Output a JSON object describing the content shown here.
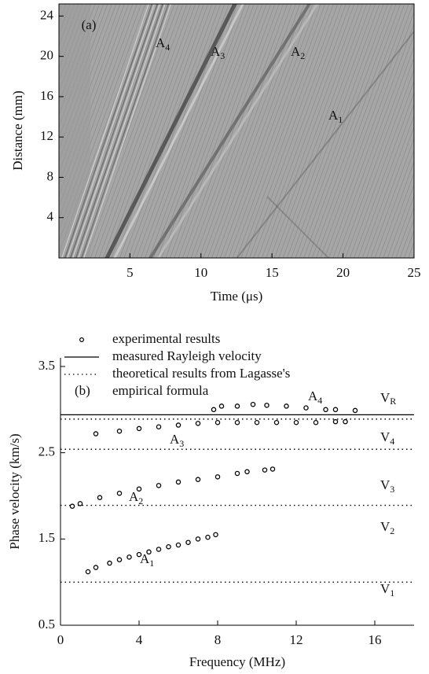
{
  "chart_data": [
    {
      "type": "image",
      "label": "(a)",
      "xlabel": "Time (μs)",
      "ylabel": "Distance (mm)",
      "xlim": [
        0,
        25
      ],
      "ylim": [
        0,
        25.2
      ],
      "xticks": [
        5,
        10,
        15,
        20,
        25
      ],
      "yticks": [
        4,
        8,
        12,
        16,
        20,
        24
      ],
      "annotations": [
        {
          "text": "A",
          "sub": "4"
        },
        {
          "text": "A",
          "sub": "3"
        },
        {
          "text": "A",
          "sub": "2"
        },
        {
          "text": "A",
          "sub": "1"
        }
      ]
    },
    {
      "type": "scatter",
      "label": "(b)",
      "xlabel": "Frequency (MHz)",
      "ylabel": "Phase velocity (km/s)",
      "xlim": [
        0,
        18
      ],
      "ylim": [
        0.5,
        3.6
      ],
      "xticks": [
        0,
        4,
        8,
        12,
        16
      ],
      "yticks": [
        3.5,
        2.5,
        1.5,
        0.5
      ],
      "series": [
        {
          "name": "experimental results",
          "color": "#000000",
          "marker": "open-circle",
          "groups": [
            {
              "annotation": {
                "text": "A",
                "sub": "1"
              },
              "x": [
                1.4,
                1.8,
                2.5,
                3,
                3.5,
                4,
                4.5,
                5,
                5.5,
                6,
                6.5,
                7,
                7.5,
                7.9
              ],
              "y": [
                1.12,
                1.17,
                1.22,
                1.26,
                1.29,
                1.32,
                1.35,
                1.38,
                1.41,
                1.43,
                1.46,
                1.5,
                1.52,
                1.55
              ]
            },
            {
              "annotation": {
                "text": "A",
                "sub": "2"
              },
              "x": [
                0.6,
                1,
                2,
                3,
                4,
                5,
                6,
                7,
                8,
                9,
                9.5,
                10.4,
                10.8
              ],
              "y": [
                1.88,
                1.91,
                1.98,
                2.03,
                2.08,
                2.12,
                2.16,
                2.19,
                2.22,
                2.26,
                2.28,
                2.3,
                2.31
              ]
            },
            {
              "annotation": {
                "text": "A",
                "sub": "3"
              },
              "x": [
                1.8,
                3,
                4,
                5,
                6,
                7,
                8,
                9,
                10,
                11,
                12,
                13,
                14,
                14.5
              ],
              "y": [
                2.72,
                2.75,
                2.78,
                2.8,
                2.82,
                2.84,
                2.85,
                2.85,
                2.85,
                2.85,
                2.85,
                2.85,
                2.86,
                2.86
              ]
            },
            {
              "annotation": {
                "text": "A",
                "sub": "4"
              },
              "x": [
                7.8,
                8.2,
                9,
                9.8,
                10.5,
                11.5,
                12.5,
                13.5,
                14,
                15
              ],
              "y": [
                3.0,
                3.04,
                3.04,
                3.06,
                3.05,
                3.04,
                3.02,
                3.0,
                3.0,
                2.99
              ]
            }
          ]
        }
      ],
      "reference_lines": [
        {
          "name": [
            "measured Rayleigh velocity"
          ],
          "style": "solid",
          "color": "#000000",
          "lines": [
            {
              "value": 2.94,
              "label": {
                "text": "V",
                "sub": "R"
              }
            }
          ]
        },
        {
          "name": [
            "theoretical results from Lagasse's",
            "empirical formula"
          ],
          "style": "dotted",
          "color": "#000000",
          "lines": [
            {
              "value": 2.89,
              "label": {
                "text": "V",
                "sub": "4"
              }
            },
            {
              "value": 2.54,
              "label": {
                "text": "V",
                "sub": "3"
              }
            },
            {
              "value": 1.89,
              "label": {
                "text": "V",
                "sub": "2"
              }
            },
            {
              "value": 1.0,
              "label": {
                "text": "V",
                "sub": "1"
              }
            }
          ]
        }
      ]
    }
  ]
}
